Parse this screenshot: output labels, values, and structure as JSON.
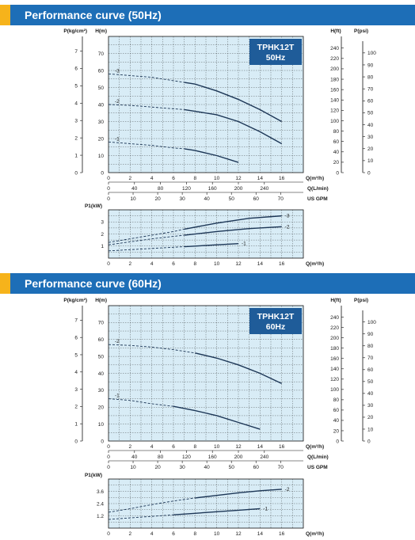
{
  "sections": [
    {
      "title": "Performance curve (50Hz)",
      "model": "TPHK12T",
      "freq": "50Hz",
      "top_y_left_label": "P(kg/cm²)",
      "top_y_label": "H(m)",
      "top_y_right_label1": "H(ft)",
      "top_y_right_label2": "P(psi)",
      "q_label": "Q(m³/h)",
      "lmin_label": "Q(L/min)",
      "gpm_label": "US GPM",
      "bottom_y_label": "P1(kW)",
      "bottom_q_label": "Q(m³/h)",
      "q_ticks": [
        "0",
        "2",
        "4",
        "6",
        "8",
        "10",
        "12",
        "14",
        "16"
      ],
      "lmin_ticks": [
        "0",
        "40",
        "80",
        "120",
        "160",
        "200",
        "240"
      ],
      "gpm_ticks": [
        "0",
        "10",
        "20",
        "30",
        "40",
        "50",
        "60",
        "70"
      ],
      "h_ticks": [
        "0",
        "10",
        "20",
        "30",
        "40",
        "50",
        "60",
        "70"
      ],
      "p_ticks": [
        "0",
        "1",
        "2",
        "3",
        "4",
        "5",
        "6",
        "7"
      ],
      "ft_ticks": [
        "0",
        "20",
        "40",
        "60",
        "80",
        "100",
        "120",
        "140",
        "160",
        "180",
        "200",
        "220",
        "240"
      ],
      "psi_ticks": [
        "0",
        "10",
        "20",
        "30",
        "40",
        "50",
        "60",
        "70",
        "80",
        "90",
        "100"
      ],
      "kw_ticks": [
        "1",
        "2",
        "3"
      ],
      "kw_values": [
        1,
        2,
        3
      ]
    },
    {
      "title": "Performance curve (60Hz)",
      "model": "TPHK12T",
      "freq": "60Hz",
      "top_y_left_label": "P(kg/cm²)",
      "top_y_label": "H(m)",
      "top_y_right_label1": "H(ft)",
      "top_y_right_label2": "P(psi)",
      "q_label": "Q(m³/h)",
      "lmin_label": "Q(L/min)",
      "gpm_label": "US GPM",
      "bottom_y_label": "P1(kW)",
      "bottom_q_label": "Q(m³/h)",
      "q_ticks": [
        "0",
        "2",
        "4",
        "6",
        "8",
        "10",
        "12",
        "14",
        "16"
      ],
      "lmin_ticks": [
        "0",
        "40",
        "80",
        "120",
        "160",
        "200",
        "240"
      ],
      "gpm_ticks": [
        "0",
        "10",
        "20",
        "30",
        "40",
        "50",
        "60",
        "70"
      ],
      "h_ticks": [
        "0",
        "10",
        "20",
        "30",
        "40",
        "50",
        "60",
        "70"
      ],
      "p_ticks": [
        "0",
        "1",
        "2",
        "3",
        "4",
        "5",
        "6",
        "7"
      ],
      "ft_ticks": [
        "0",
        "20",
        "40",
        "60",
        "80",
        "100",
        "120",
        "140",
        "160",
        "180",
        "200",
        "220",
        "240"
      ],
      "psi_ticks": [
        "0",
        "10",
        "20",
        "30",
        "40",
        "50",
        "60",
        "70",
        "80",
        "90",
        "100"
      ],
      "kw_ticks": [
        "1.2",
        "2.4",
        "3.6"
      ],
      "kw_values": [
        1.2,
        2.4,
        3.6
      ]
    }
  ],
  "chart_data": [
    {
      "type": "line",
      "title": "Performance curve (50Hz)",
      "xlabel": "Q(m³/h)",
      "ylabel": "H(m)",
      "xlim": [
        0,
        18
      ],
      "ylim": [
        0,
        80
      ],
      "series": [
        {
          "name": "-3",
          "dashed": {
            "x": [
              0,
              2,
              4,
              6,
              7
            ],
            "y": [
              58,
              57,
              56,
              54,
              53
            ]
          },
          "solid": {
            "x": [
              7,
              8,
              10,
              12,
              14,
              16
            ],
            "y": [
              53,
              52,
              48,
              43,
              37,
              30
            ]
          }
        },
        {
          "name": "-2",
          "dashed": {
            "x": [
              0,
              2,
              4,
              6,
              7
            ],
            "y": [
              40,
              39.5,
              38.5,
              37.5,
              37
            ]
          },
          "solid": {
            "x": [
              7,
              8,
              10,
              12,
              14,
              16
            ],
            "y": [
              37,
              36,
              34,
              30,
              24,
              17
            ]
          }
        },
        {
          "name": "-1",
          "dashed": {
            "x": [
              0,
              2,
              4,
              6,
              7
            ],
            "y": [
              18,
              17,
              16,
              14.5,
              14
            ]
          },
          "solid": {
            "x": [
              7,
              8,
              10,
              12
            ],
            "y": [
              14,
              13,
              10,
              6
            ]
          }
        }
      ]
    },
    {
      "type": "line",
      "title": "Performance curve (50Hz)",
      "xlabel": "Q(m³/h)",
      "ylabel": "P1(kW)",
      "xlim": [
        0,
        18
      ],
      "ylim": [
        0,
        4
      ],
      "series": [
        {
          "name": "-3",
          "dashed": {
            "x": [
              0,
              2,
              4,
              6,
              7
            ],
            "y": [
              1.3,
              1.6,
              1.9,
              2.2,
              2.4
            ]
          },
          "solid": {
            "x": [
              7,
              10,
              13,
              16
            ],
            "y": [
              2.4,
              2.9,
              3.3,
              3.5
            ]
          }
        },
        {
          "name": "-2",
          "dashed": {
            "x": [
              0,
              2,
              4,
              6,
              7
            ],
            "y": [
              1.1,
              1.35,
              1.6,
              1.8,
              1.9
            ]
          },
          "solid": {
            "x": [
              7,
              10,
              13,
              16
            ],
            "y": [
              1.9,
              2.2,
              2.45,
              2.6
            ]
          }
        },
        {
          "name": "-1",
          "dashed": {
            "x": [
              0,
              2,
              4,
              6,
              7
            ],
            "y": [
              0.6,
              0.7,
              0.8,
              0.9,
              0.95
            ]
          },
          "solid": {
            "x": [
              7,
              10,
              12
            ],
            "y": [
              0.95,
              1.1,
              1.2
            ]
          }
        }
      ]
    },
    {
      "type": "line",
      "title": "Performance curve (60Hz)",
      "xlabel": "Q(m³/h)",
      "ylabel": "H(m)",
      "xlim": [
        0,
        18
      ],
      "ylim": [
        0,
        80
      ],
      "series": [
        {
          "name": "-2",
          "dashed": {
            "x": [
              0,
              2,
              4,
              6,
              8
            ],
            "y": [
              57,
              56.5,
              55.5,
              54,
              52
            ]
          },
          "solid": {
            "x": [
              8,
              10,
              12,
              14,
              16
            ],
            "y": [
              52,
              49,
              45,
              40,
              34
            ]
          }
        },
        {
          "name": "-1",
          "dashed": {
            "x": [
              0,
              2,
              4,
              6
            ],
            "y": [
              25,
              24,
              22,
              20.5
            ]
          },
          "solid": {
            "x": [
              6,
              8,
              10,
              12,
              14
            ],
            "y": [
              20.5,
              18,
              15,
              11,
              7
            ]
          }
        }
      ]
    },
    {
      "type": "line",
      "title": "Performance curve (60Hz)",
      "xlabel": "Q(m³/h)",
      "ylabel": "P1(kW)",
      "xlim": [
        0,
        18
      ],
      "ylim": [
        0,
        4.8
      ],
      "series": [
        {
          "name": "-2",
          "dashed": {
            "x": [
              0,
              2,
              4,
              6,
              8
            ],
            "y": [
              1.55,
              1.9,
              2.3,
              2.65,
              2.95
            ]
          },
          "solid": {
            "x": [
              8,
              10,
              12,
              14,
              16
            ],
            "y": [
              2.95,
              3.2,
              3.45,
              3.65,
              3.8
            ]
          }
        },
        {
          "name": "-1",
          "dashed": {
            "x": [
              0,
              2,
              4,
              6
            ],
            "y": [
              0.85,
              1.0,
              1.15,
              1.3
            ]
          },
          "solid": {
            "x": [
              6,
              8,
              10,
              12,
              14
            ],
            "y": [
              1.3,
              1.45,
              1.6,
              1.75,
              1.9
            ]
          }
        }
      ]
    }
  ]
}
